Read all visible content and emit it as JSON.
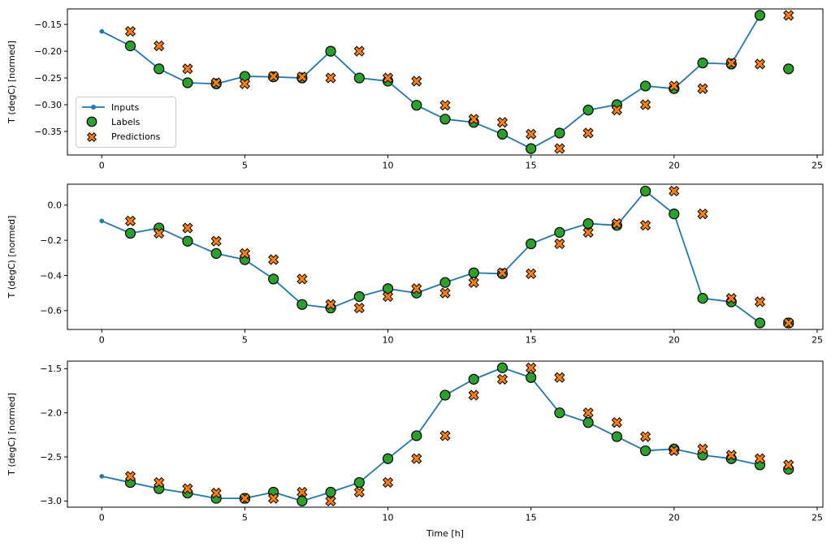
{
  "figure": {
    "background": "#ffffff",
    "xlabel": "Time [h]",
    "ylabel": "T (degC) [normed]",
    "colors": {
      "inputs": "#1f77b4",
      "labels": "#2ca02c",
      "predictions": "#ff7f0e",
      "marker_edge": "#000000",
      "spine": "#000000",
      "text": "#000000",
      "legend_border": "#cccccc"
    },
    "legend": {
      "items": [
        {
          "name": "inputs",
          "label": "Inputs"
        },
        {
          "name": "labels",
          "label": "Labels"
        },
        {
          "name": "predictions",
          "label": "Predictions"
        }
      ]
    }
  },
  "chart_data": [
    {
      "type": "line",
      "title": "",
      "xlabel": "",
      "ylabel": "T (degC) [normed]",
      "xlim": [
        -1.2,
        25.2
      ],
      "ylim": [
        -0.394,
        -0.121
      ],
      "x_ticks": [
        0,
        5,
        10,
        15,
        20,
        25
      ],
      "x_tick_labels": [
        "0",
        "5",
        "10",
        "15",
        "20",
        "25"
      ],
      "y_ticks": [
        -0.15,
        -0.2,
        -0.25,
        -0.3,
        -0.35
      ],
      "y_tick_labels": [
        "−0.15",
        "−0.20",
        "−0.25",
        "−0.30",
        "−0.35"
      ],
      "legend": true,
      "series": [
        {
          "name": "Inputs",
          "style": "line-dot",
          "x": [
            0,
            1,
            2,
            3,
            4,
            5,
            6,
            7,
            8,
            9,
            10,
            11,
            12,
            13,
            14,
            15,
            16,
            17,
            18,
            19,
            20,
            21,
            22,
            23
          ],
          "y": [
            -0.163,
            -0.19,
            -0.233,
            -0.259,
            -0.261,
            -0.247,
            -0.248,
            -0.25,
            -0.2,
            -0.25,
            -0.256,
            -0.301,
            -0.327,
            -0.333,
            -0.355,
            -0.382,
            -0.353,
            -0.31,
            -0.3,
            -0.265,
            -0.27,
            -0.222,
            -0.224,
            -0.133
          ]
        },
        {
          "name": "Labels",
          "style": "circle",
          "x": [
            1,
            2,
            3,
            4,
            5,
            6,
            7,
            8,
            9,
            10,
            11,
            12,
            13,
            14,
            15,
            16,
            17,
            18,
            19,
            20,
            21,
            22,
            23,
            24
          ],
          "y": [
            -0.19,
            -0.233,
            -0.259,
            -0.261,
            -0.247,
            -0.248,
            -0.25,
            -0.2,
            -0.25,
            -0.256,
            -0.301,
            -0.327,
            -0.333,
            -0.355,
            -0.382,
            -0.353,
            -0.31,
            -0.3,
            -0.265,
            -0.27,
            -0.222,
            -0.224,
            -0.133,
            -0.233
          ]
        },
        {
          "name": "Predictions",
          "style": "x-marker",
          "x": [
            1,
            2,
            3,
            4,
            5,
            6,
            7,
            8,
            9,
            10,
            11,
            12,
            13,
            14,
            15,
            16,
            17,
            18,
            19,
            20,
            21,
            22,
            23,
            24
          ],
          "y": [
            -0.163,
            -0.19,
            -0.233,
            -0.259,
            -0.261,
            -0.247,
            -0.248,
            -0.25,
            -0.2,
            -0.25,
            -0.256,
            -0.301,
            -0.327,
            -0.333,
            -0.355,
            -0.382,
            -0.353,
            -0.31,
            -0.3,
            -0.265,
            -0.27,
            -0.222,
            -0.224,
            -0.133
          ]
        }
      ]
    },
    {
      "type": "line",
      "title": "",
      "xlabel": "",
      "ylabel": "T (degC) [normed]",
      "xlim": [
        -1.2,
        25.2
      ],
      "ylim": [
        -0.707,
        0.119
      ],
      "x_ticks": [
        0,
        5,
        10,
        15,
        20,
        25
      ],
      "x_tick_labels": [
        "0",
        "5",
        "10",
        "15",
        "20",
        "25"
      ],
      "y_ticks": [
        0.0,
        -0.2,
        -0.4,
        -0.6
      ],
      "y_tick_labels": [
        "0.0",
        "−0.2",
        "−0.4",
        "−0.6"
      ],
      "legend": false,
      "series": [
        {
          "name": "Inputs",
          "style": "line-dot",
          "x": [
            0,
            1,
            2,
            3,
            4,
            5,
            6,
            7,
            8,
            9,
            10,
            11,
            12,
            13,
            14,
            15,
            16,
            17,
            18,
            19,
            20,
            21,
            22,
            23
          ],
          "y": [
            -0.09,
            -0.16,
            -0.13,
            -0.205,
            -0.275,
            -0.31,
            -0.42,
            -0.565,
            -0.585,
            -0.52,
            -0.475,
            -0.5,
            -0.44,
            -0.385,
            -0.39,
            -0.22,
            -0.155,
            -0.105,
            -0.115,
            0.08,
            -0.05,
            -0.53,
            -0.55,
            -0.67
          ]
        },
        {
          "name": "Labels",
          "style": "circle",
          "x": [
            1,
            2,
            3,
            4,
            5,
            6,
            7,
            8,
            9,
            10,
            11,
            12,
            13,
            14,
            15,
            16,
            17,
            18,
            19,
            20,
            21,
            22,
            23,
            24
          ],
          "y": [
            -0.16,
            -0.13,
            -0.205,
            -0.275,
            -0.31,
            -0.42,
            -0.565,
            -0.585,
            -0.52,
            -0.475,
            -0.5,
            -0.44,
            -0.385,
            -0.39,
            -0.22,
            -0.155,
            -0.105,
            -0.115,
            0.08,
            -0.05,
            -0.53,
            -0.55,
            -0.67,
            -0.67
          ]
        },
        {
          "name": "Predictions",
          "style": "x-marker",
          "x": [
            1,
            2,
            3,
            4,
            5,
            6,
            7,
            8,
            9,
            10,
            11,
            12,
            13,
            14,
            15,
            16,
            17,
            18,
            19,
            20,
            21,
            22,
            23,
            24
          ],
          "y": [
            -0.09,
            -0.16,
            -0.13,
            -0.205,
            -0.275,
            -0.31,
            -0.42,
            -0.565,
            -0.585,
            -0.52,
            -0.475,
            -0.5,
            -0.44,
            -0.385,
            -0.39,
            -0.22,
            -0.155,
            -0.105,
            -0.115,
            0.08,
            -0.05,
            -0.53,
            -0.55,
            -0.67
          ]
        }
      ]
    },
    {
      "type": "line",
      "title": "",
      "xlabel": "Time [h]",
      "ylabel": "T (degC) [normed]",
      "xlim": [
        -1.2,
        25.2
      ],
      "ylim": [
        -3.07,
        -1.414
      ],
      "x_ticks": [
        0,
        5,
        10,
        15,
        20,
        25
      ],
      "x_tick_labels": [
        "0",
        "5",
        "10",
        "15",
        "20",
        "25"
      ],
      "y_ticks": [
        -1.5,
        -2.0,
        -2.5,
        -3.0
      ],
      "y_tick_labels": [
        "−1.5",
        "−2.0",
        "−2.5",
        "−3.0"
      ],
      "legend": false,
      "series": [
        {
          "name": "Inputs",
          "style": "line-dot",
          "x": [
            0,
            1,
            2,
            3,
            4,
            5,
            6,
            7,
            8,
            9,
            10,
            11,
            12,
            13,
            14,
            15,
            16,
            17,
            18,
            19,
            20,
            21,
            22,
            23
          ],
          "y": [
            -2.72,
            -2.79,
            -2.86,
            -2.91,
            -2.97,
            -2.97,
            -2.9,
            -3.0,
            -2.9,
            -2.79,
            -2.52,
            -2.26,
            -1.8,
            -1.62,
            -1.49,
            -1.6,
            -2.0,
            -2.11,
            -2.27,
            -2.43,
            -2.41,
            -2.48,
            -2.52,
            -2.59
          ]
        },
        {
          "name": "Labels",
          "style": "circle",
          "x": [
            1,
            2,
            3,
            4,
            5,
            6,
            7,
            8,
            9,
            10,
            11,
            12,
            13,
            14,
            15,
            16,
            17,
            18,
            19,
            20,
            21,
            22,
            23,
            24
          ],
          "y": [
            -2.79,
            -2.86,
            -2.91,
            -2.97,
            -2.97,
            -2.9,
            -3.0,
            -2.9,
            -2.79,
            -2.52,
            -2.26,
            -1.8,
            -1.62,
            -1.49,
            -1.6,
            -2.0,
            -2.11,
            -2.27,
            -2.43,
            -2.41,
            -2.48,
            -2.52,
            -2.59,
            -2.64
          ]
        },
        {
          "name": "Predictions",
          "style": "x-marker",
          "x": [
            1,
            2,
            3,
            4,
            5,
            6,
            7,
            8,
            9,
            10,
            11,
            12,
            13,
            14,
            15,
            16,
            17,
            18,
            19,
            20,
            21,
            22,
            23,
            24
          ],
          "y": [
            -2.72,
            -2.79,
            -2.86,
            -2.91,
            -2.97,
            -2.97,
            -2.9,
            -3.0,
            -2.9,
            -2.79,
            -2.52,
            -2.26,
            -1.8,
            -1.62,
            -1.49,
            -1.6,
            -2.0,
            -2.11,
            -2.27,
            -2.43,
            -2.41,
            -2.48,
            -2.52,
            -2.59
          ]
        }
      ]
    }
  ]
}
